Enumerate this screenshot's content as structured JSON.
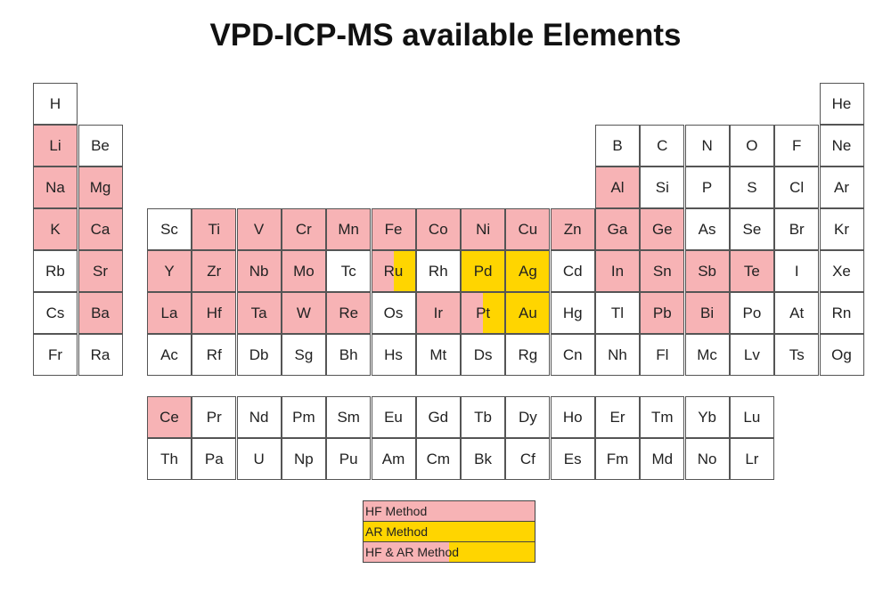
{
  "title": "VPD-ICP-MS available Elements",
  "colors": {
    "HF": "#f7b3b5",
    "AR": "#ffd500"
  },
  "main_table": [
    [
      "H",
      "",
      "",
      "",
      "",
      "",
      "",
      "",
      "",
      "",
      "",
      "",
      "",
      "",
      "",
      "",
      "",
      "He"
    ],
    [
      "Li",
      "Be",
      "",
      "",
      "",
      "",
      "",
      "",
      "",
      "",
      "",
      "",
      "B",
      "C",
      "N",
      "O",
      "F",
      "Ne"
    ],
    [
      "Na",
      "Mg",
      "",
      "",
      "",
      "",
      "",
      "",
      "",
      "",
      "",
      "",
      "Al",
      "Si",
      "P",
      "S",
      "Cl",
      "Ar"
    ],
    [
      "K",
      "Ca",
      "Sc",
      "Ti",
      "V",
      "Cr",
      "Mn",
      "Fe",
      "Co",
      "Ni",
      "Cu",
      "Zn",
      "Ga",
      "Ge",
      "As",
      "Se",
      "Br",
      "Kr"
    ],
    [
      "Rb",
      "Sr",
      "Y",
      "Zr",
      "Nb",
      "Mo",
      "Tc",
      "Ru",
      "Rh",
      "Pd",
      "Ag",
      "Cd",
      "In",
      "Sn",
      "Sb",
      "Te",
      "I",
      "Xe"
    ],
    [
      "Cs",
      "Ba",
      "La",
      "Hf",
      "Ta",
      "W",
      "Re",
      "Os",
      "Ir",
      "Pt",
      "Au",
      "Hg",
      "Tl",
      "Pb",
      "Bi",
      "Po",
      "At",
      "Rn"
    ],
    [
      "Fr",
      "Ra",
      "Ac",
      "Rf",
      "Db",
      "Sg",
      "Bh",
      "Hs",
      "Mt",
      "Ds",
      "Rg",
      "Cn",
      "Nh",
      "Fl",
      "Mc",
      "Lv",
      "Ts",
      "Og"
    ]
  ],
  "f_block": [
    [
      "Ce",
      "Pr",
      "Nd",
      "Pm",
      "Sm",
      "Eu",
      "Gd",
      "Tb",
      "Dy",
      "Ho",
      "Er",
      "Tm",
      "Yb",
      "Lu"
    ],
    [
      "Th",
      "Pa",
      "U",
      "Np",
      "Pu",
      "Am",
      "Cm",
      "Bk",
      "Cf",
      "Es",
      "Fm",
      "Md",
      "No",
      "Lr"
    ]
  ],
  "methods": {
    "Li": "HF",
    "Na": "HF",
    "Mg": "HF",
    "K": "HF",
    "Ca": "HF",
    "Sr": "HF",
    "Ba": "HF",
    "Al": "HF",
    "Ti": "HF",
    "V": "HF",
    "Cr": "HF",
    "Mn": "HF",
    "Fe": "HF",
    "Co": "HF",
    "Ni": "HF",
    "Cu": "HF",
    "Zn": "HF",
    "Ga": "HF",
    "Ge": "HF",
    "Y": "HF",
    "Zr": "HF",
    "Nb": "HF",
    "Mo": "HF",
    "In": "HF",
    "Sn": "HF",
    "Sb": "HF",
    "Te": "HF",
    "La": "HF",
    "Hf": "HF",
    "Ta": "HF",
    "W": "HF",
    "Re": "HF",
    "Ir": "HF",
    "Pb": "HF",
    "Bi": "HF",
    "Ce": "HF",
    "Pd": "AR",
    "Ag": "AR",
    "Au": "AR",
    "Ru": "both",
    "Pt": "both"
  },
  "legend": [
    {
      "label": "HF Method",
      "method": "HF"
    },
    {
      "label": "AR Method",
      "method": "AR"
    },
    {
      "label": "HF & AR Method",
      "method": "both"
    }
  ]
}
